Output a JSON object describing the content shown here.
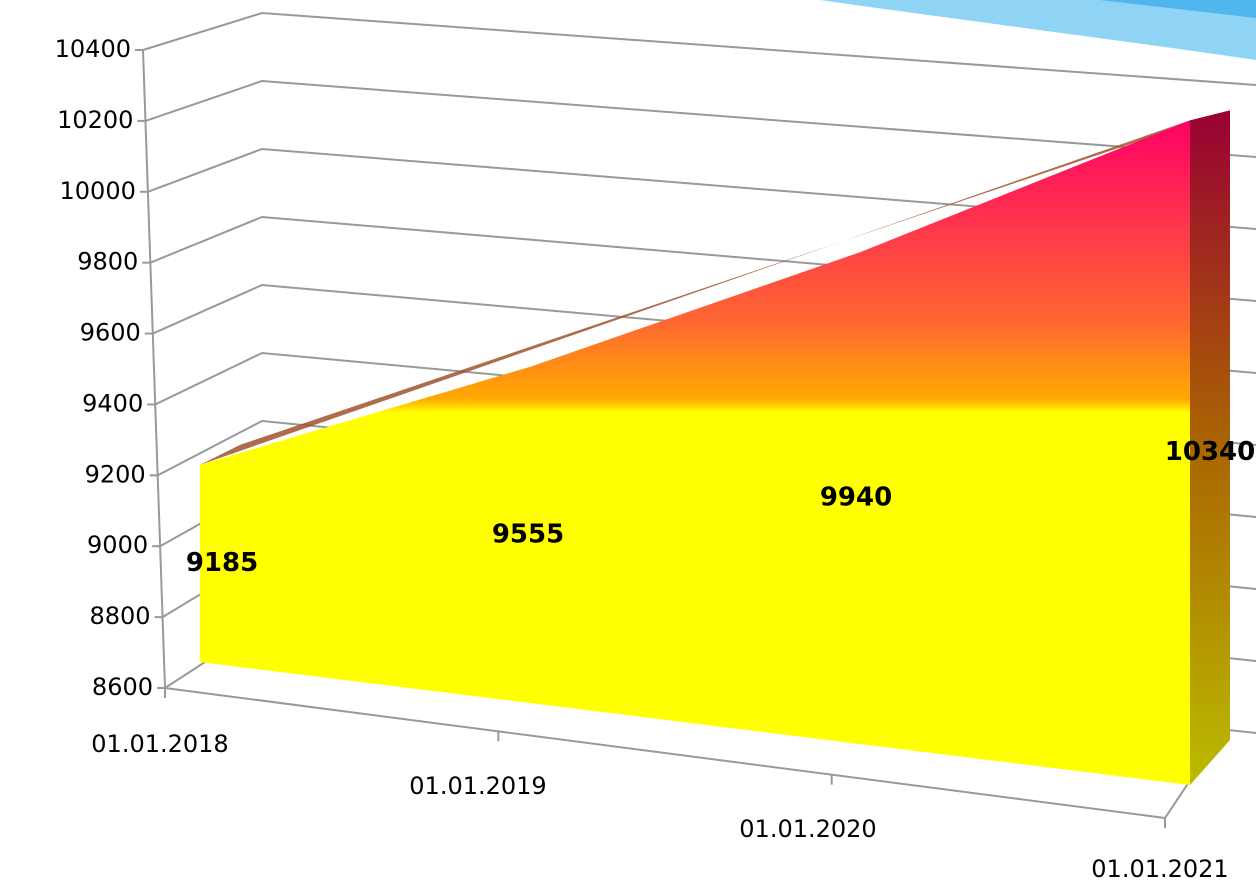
{
  "chart_data": {
    "type": "area3d",
    "categories": [
      "01.01.2018",
      "01.01.2019",
      "01.01.2020",
      "01.01.2021"
    ],
    "values": [
      9185,
      9555,
      9940,
      10340
    ],
    "ylim": [
      8600,
      10400
    ],
    "yticks": [
      8600,
      8800,
      9000,
      9200,
      9400,
      9600,
      9800,
      10000,
      10200,
      10400
    ],
    "grid": true
  }
}
